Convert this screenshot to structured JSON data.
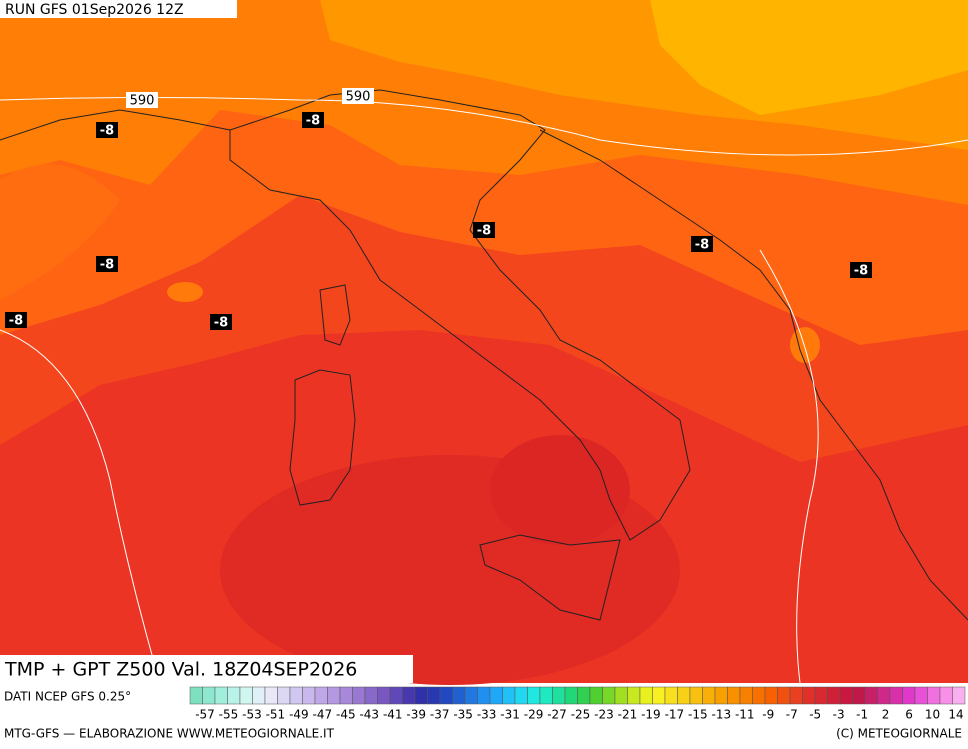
{
  "header": {
    "run": "RUN GFS 01Sep2026 12Z"
  },
  "contour_labels": {
    "geopotential": [
      "590",
      "590"
    ],
    "temperature": [
      "-8",
      "-8",
      "-8",
      "-8",
      "-8",
      "-8",
      "-8",
      "-8"
    ]
  },
  "map_title": "TMP + GPT Z500 Val. 18Z04SEP2026",
  "source": "DATI NCEP GFS 0.25°",
  "colorbar": {
    "labels": [
      "-57",
      "-55",
      "-53",
      "-51",
      "-49",
      "-47",
      "-45",
      "-43",
      "-41",
      "-39",
      "-37",
      "-35",
      "-33",
      "-31",
      "-29",
      "-27",
      "-25",
      "-23",
      "-21",
      "-19",
      "-17",
      "-15",
      "-13",
      "-11",
      "-9",
      "-7",
      "-5",
      "-3",
      "-1",
      "2",
      "6",
      "10",
      "14"
    ]
  },
  "footer": {
    "left": "MTG-GFS — ELABORAZIONE WWW.METEOGIORNALE.IT",
    "right": "(C) METEOGIORNALE"
  }
}
